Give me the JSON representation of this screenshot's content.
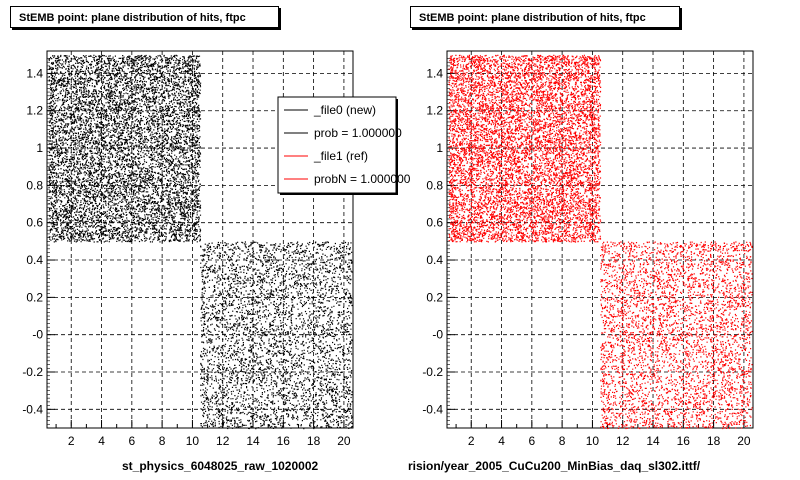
{
  "chart_data": [
    {
      "type": "scatter",
      "title": "StEMB point: plane distribution of hits, ftpc",
      "xlabel": "st_physics_6048025_raw_1020002",
      "xlim": [
        0.4,
        20.6
      ],
      "ylim": [
        -0.5,
        1.52
      ],
      "x_ticks": [
        "2",
        "4",
        "6",
        "8",
        "10",
        "12",
        "14",
        "16",
        "18",
        "20"
      ],
      "y_ticks": [
        "-0.4",
        "-0.2",
        "-0",
        "0.2",
        "0.4",
        "0.6",
        "0.8",
        "1",
        "1.2",
        "1.4"
      ],
      "grid": true,
      "marker_color": "#000000",
      "regions": [
        {
          "x": [
            0.5,
            10.5
          ],
          "y": [
            0.5,
            1.5
          ],
          "density": "high"
        },
        {
          "x": [
            10.5,
            20.5
          ],
          "y": [
            -0.5,
            0.5
          ],
          "density": "medium"
        }
      ],
      "legend": {
        "placement": "top-right",
        "entries": [
          {
            "label": "_file0 (new)",
            "color": "#000000"
          },
          {
            "label": "prob = 1.000000",
            "color": "#000000"
          },
          {
            "label": "_file1 (ref)",
            "color": "#ff0000"
          },
          {
            "label": "probN = 1.000000",
            "color": "#ff0000"
          }
        ]
      }
    },
    {
      "type": "scatter",
      "title": "StEMB point: plane distribution of hits, ftpc",
      "xlabel": "rision/year_2005_CuCu200_MinBias_daq_sl302.ittf/",
      "xlim": [
        0.4,
        20.6
      ],
      "ylim": [
        -0.5,
        1.52
      ],
      "x_ticks": [
        "2",
        "4",
        "6",
        "8",
        "10",
        "12",
        "14",
        "16",
        "18",
        "20"
      ],
      "y_ticks": [
        "-0.4",
        "-0.2",
        "-0",
        "0.2",
        "0.4",
        "0.6",
        "0.8",
        "1",
        "1.2",
        "1.4"
      ],
      "grid": true,
      "marker_color": "#ff0000",
      "regions": [
        {
          "x": [
            0.5,
            10.5
          ],
          "y": [
            0.5,
            1.5
          ],
          "density": "high"
        },
        {
          "x": [
            10.5,
            20.5
          ],
          "y": [
            -0.5,
            0.5
          ],
          "density": "medium"
        }
      ]
    }
  ]
}
